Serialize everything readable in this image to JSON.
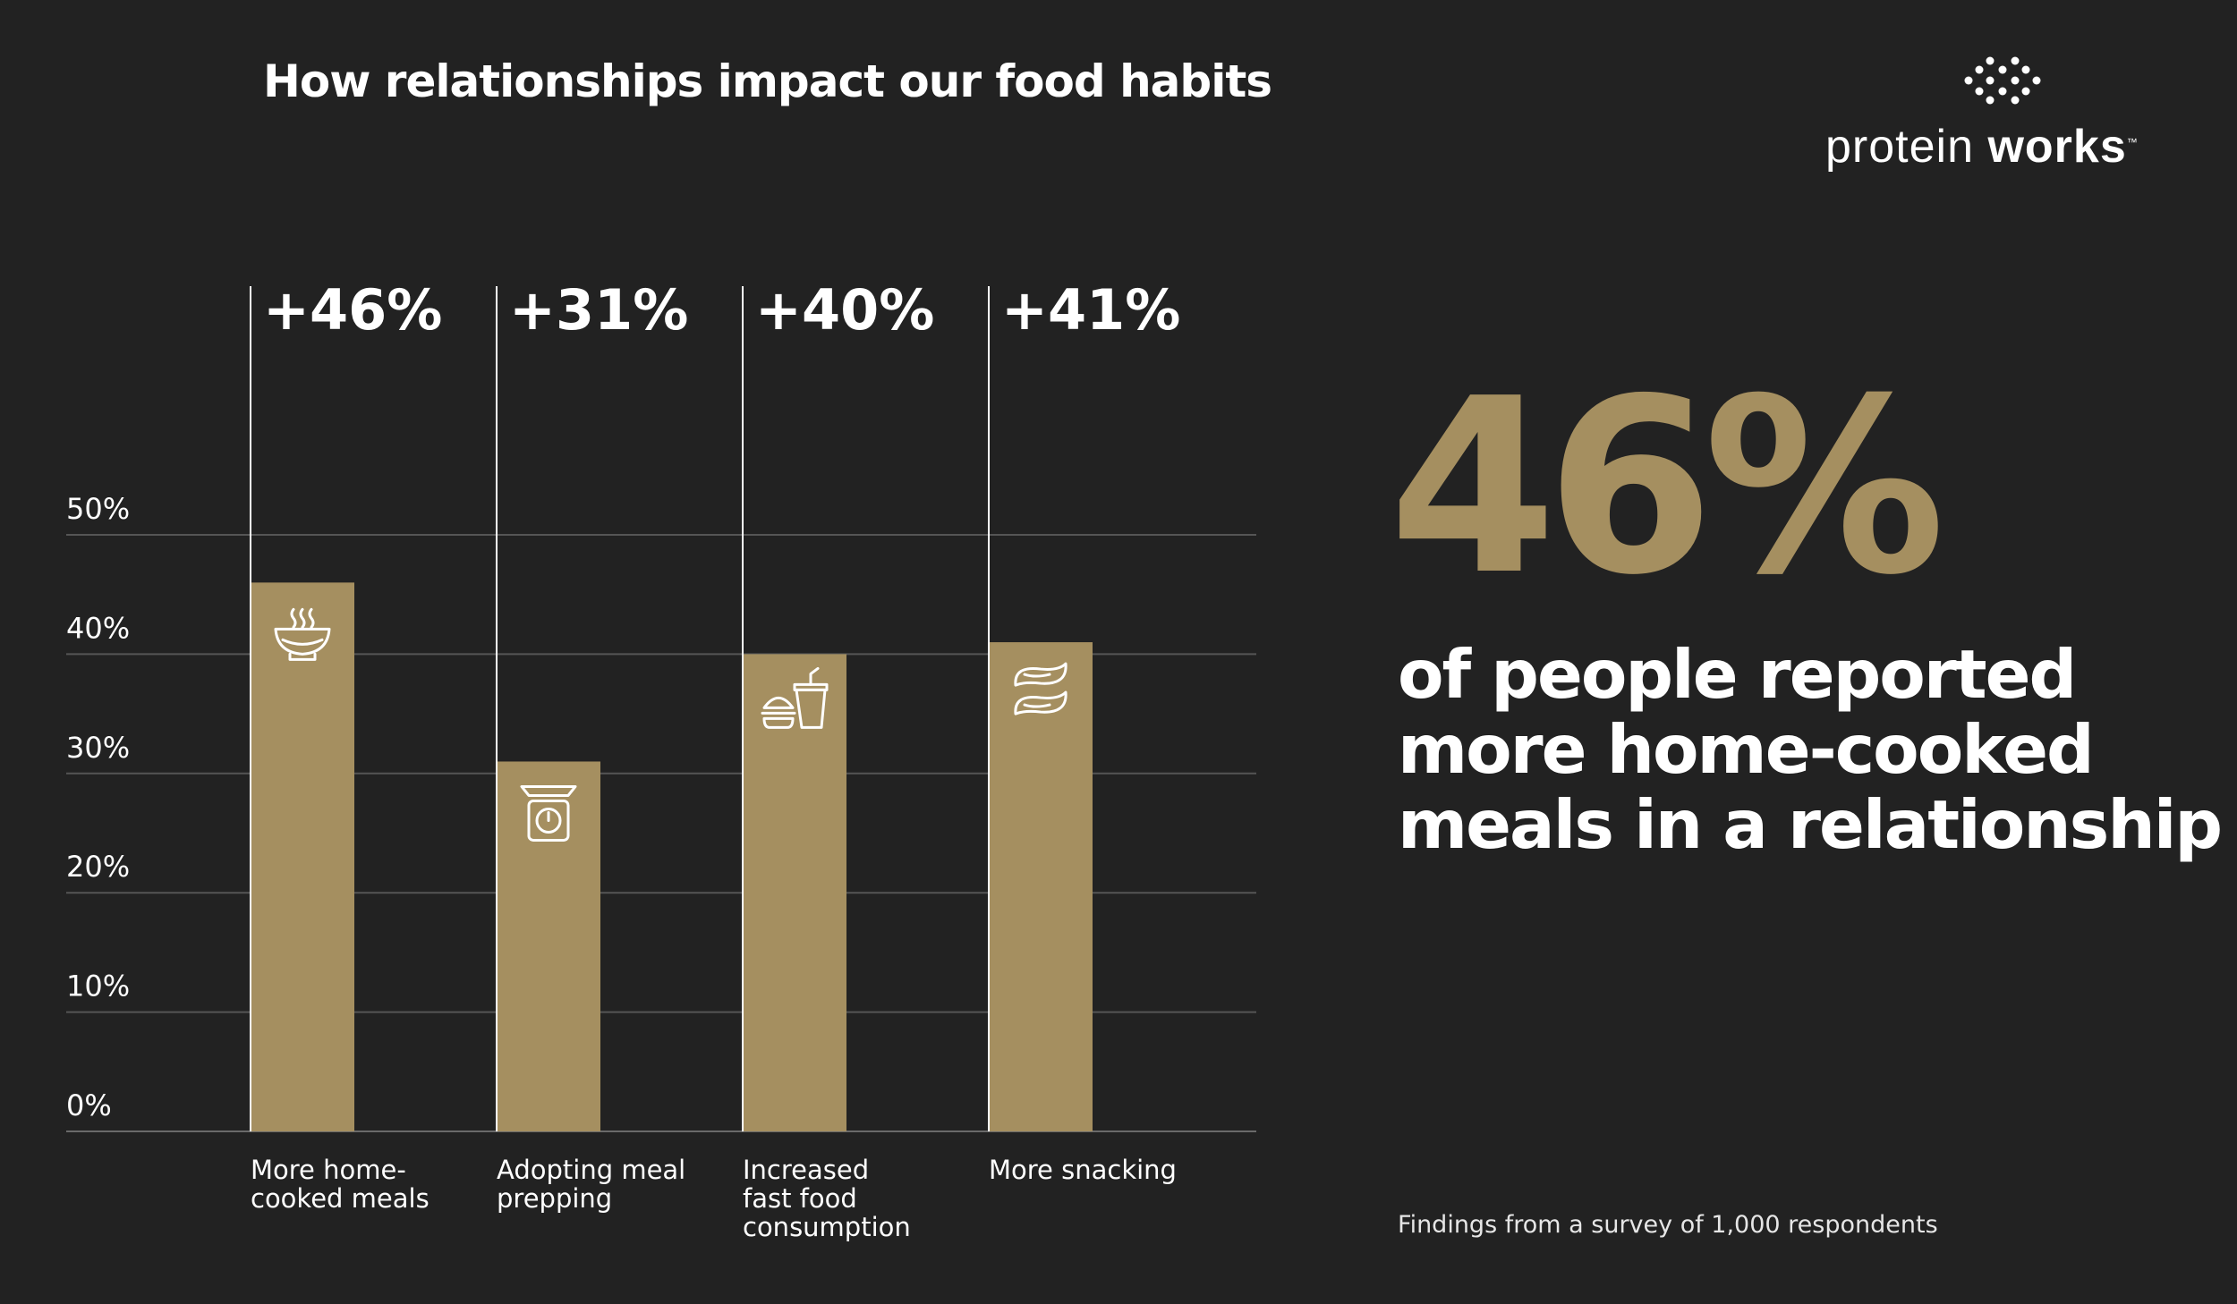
{
  "header": {
    "title": "How relationships impact our food habits"
  },
  "brand": {
    "name_light": "protein",
    "name_bold": "works",
    "trademark": "™"
  },
  "chart_data": {
    "type": "bar",
    "title": "How relationships impact our food habits",
    "categories": [
      [
        "More home-",
        "cooked meals"
      ],
      [
        "Adopting meal",
        "prepping"
      ],
      [
        "Increased",
        "fast food",
        "consumption"
      ],
      [
        "More snacking"
      ]
    ],
    "values": [
      46,
      31,
      40,
      41
    ],
    "data_labels": [
      "+46%",
      "+31%",
      "+40%",
      "+41%"
    ],
    "icons": [
      "soup-bowl-icon",
      "kitchen-scale-icon",
      "fast-food-icon",
      "snack-chips-icon"
    ],
    "yticks": [
      "0%",
      "10%",
      "20%",
      "30%",
      "40%",
      "50%"
    ],
    "ylim": [
      0,
      50
    ],
    "grid": true,
    "xlabel": "",
    "ylabel": ""
  },
  "highlight": {
    "value": "46%",
    "caption_lines": [
      "of people reported",
      "more home-cooked",
      "meals in a relationship"
    ]
  },
  "footnote": "Findings from a survey of 1,000 respondents",
  "colors": {
    "background": "#222222",
    "bar": "#a58f60",
    "text": "#ffffff",
    "grid": "#555555"
  }
}
